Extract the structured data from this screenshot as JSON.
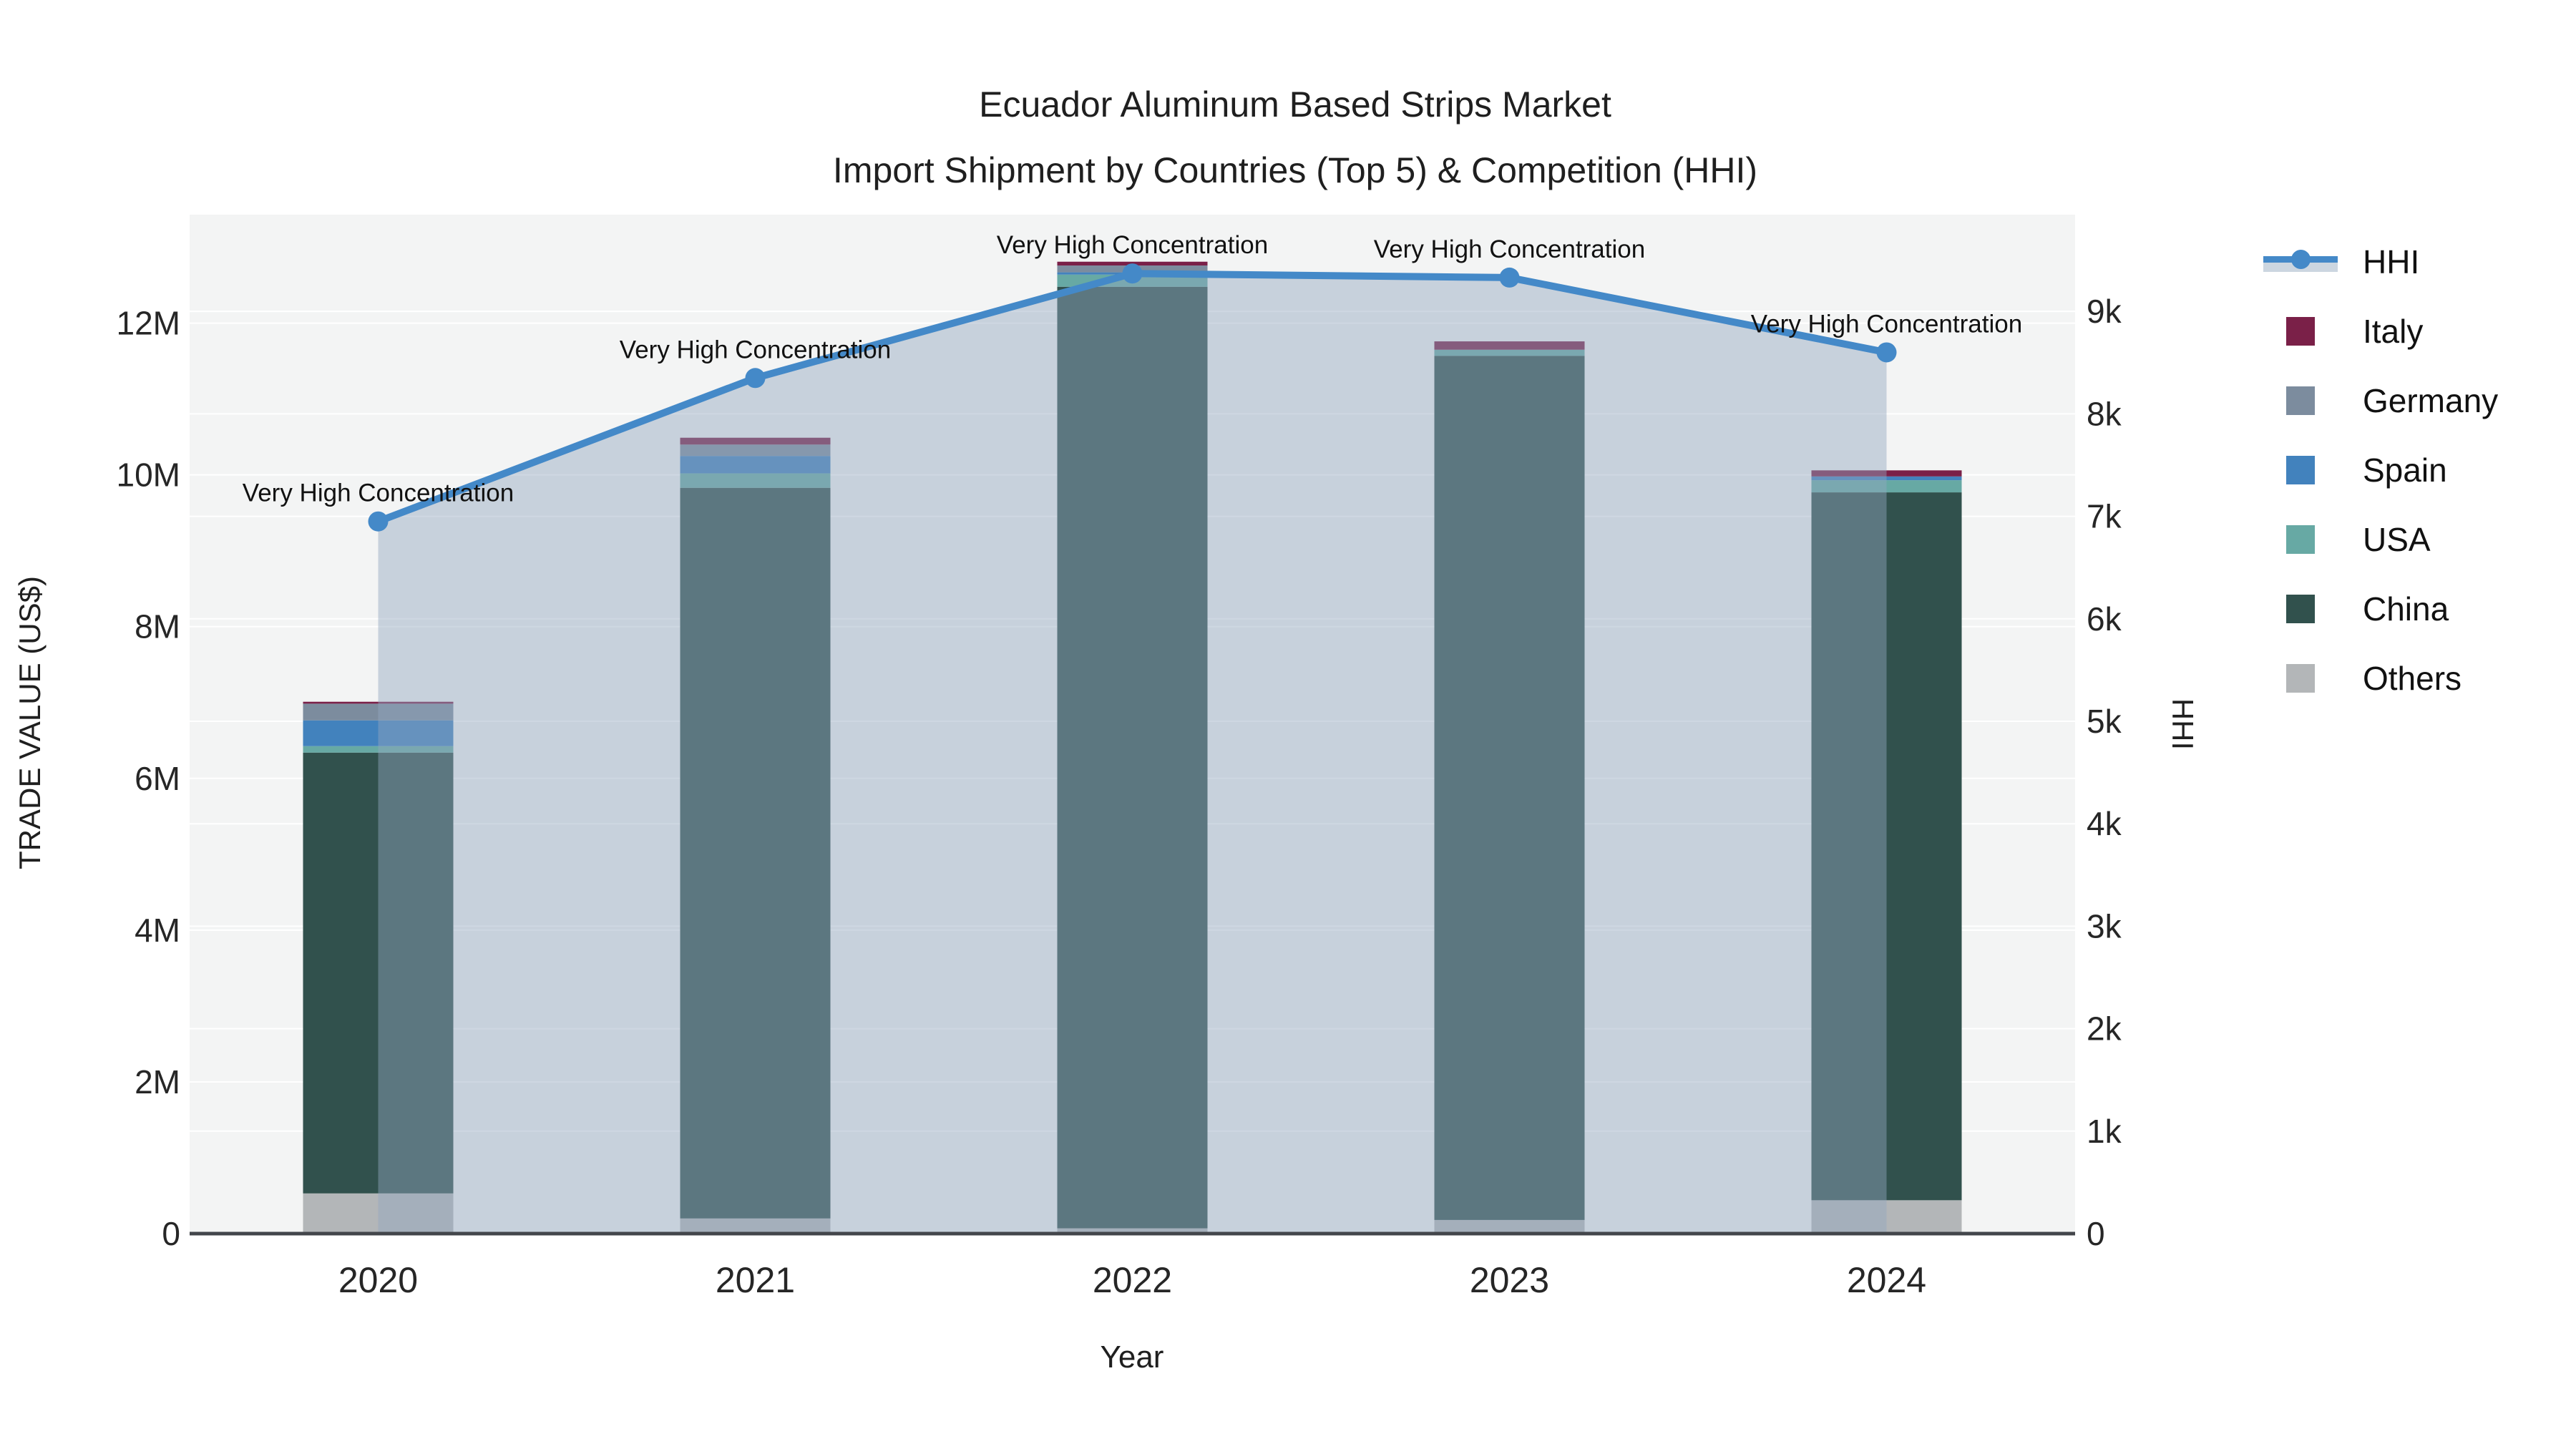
{
  "title": {
    "line1": "Ecuador Aluminum Based Strips Market",
    "line2": "Import Shipment by Countries (Top 5) & Competition (HHI)"
  },
  "x_axis": {
    "title": "Year"
  },
  "y_left_axis": {
    "title": "TRADE VALUE (US$)"
  },
  "y_right_axis": {
    "title": "HHI"
  },
  "legend": {
    "items": [
      {
        "label": "HHI",
        "kind": "line",
        "color": "#4489c8",
        "band_color": "#ccd6e0"
      },
      {
        "label": "Italy",
        "kind": "square",
        "color": "#7a2048"
      },
      {
        "label": "Germany",
        "kind": "square",
        "color": "#7c8c9e"
      },
      {
        "label": "Spain",
        "kind": "square",
        "color": "#4282bd"
      },
      {
        "label": "USA",
        "kind": "square",
        "color": "#67a9a4"
      },
      {
        "label": "China",
        "kind": "square",
        "color": "#31514d"
      },
      {
        "label": "Others",
        "kind": "square",
        "color": "#b3b6b8"
      }
    ]
  },
  "chart_data": {
    "type": "combo_stacked_bar_line",
    "categories": [
      "2020",
      "2021",
      "2022",
      "2023",
      "2024"
    ],
    "bar_value_unit": "US$",
    "bar_stack_order_bottom_to_top": [
      "Others",
      "China",
      "USA",
      "Spain",
      "Germany",
      "Italy"
    ],
    "series": [
      {
        "name": "Others",
        "color": "#b3b6b8",
        "values_usd": [
          530000,
          200000,
          70000,
          180000,
          440000
        ]
      },
      {
        "name": "China",
        "color": "#31514d",
        "values_usd": [
          5810000,
          9630000,
          12410000,
          11390000,
          9330000
        ]
      },
      {
        "name": "USA",
        "color": "#67a9a4",
        "values_usd": [
          85000,
          190000,
          160000,
          80000,
          160000
        ]
      },
      {
        "name": "Spain",
        "color": "#4282bd",
        "values_usd": [
          340000,
          230000,
          30000,
          0,
          50000
        ]
      },
      {
        "name": "Germany",
        "color": "#7c8c9e",
        "values_usd": [
          220000,
          150000,
          90000,
          0,
          0
        ]
      },
      {
        "name": "Italy",
        "color": "#7a2048",
        "values_usd": [
          25000,
          90000,
          50000,
          110000,
          80000
        ]
      }
    ],
    "bar_totals_usd": [
      7010000,
      10490000,
      12810000,
      11760000,
      10060000
    ],
    "line": {
      "name": "HHI",
      "color": "#4489c8",
      "area_fill": "rgba(147,167,190,0.45)",
      "values": [
        6950,
        8350,
        9370,
        9330,
        8600
      ]
    },
    "annotations": [
      {
        "category": "2020",
        "text": "Very High Concentration"
      },
      {
        "category": "2021",
        "text": "Very High Concentration"
      },
      {
        "category": "2022",
        "text": "Very High Concentration"
      },
      {
        "category": "2023",
        "text": "Very High Concentration"
      },
      {
        "category": "2024",
        "text": "Very High Concentration"
      }
    ],
    "y_left": {
      "label": "TRADE VALUE (US$)",
      "range_usd": [
        0,
        13430000
      ],
      "tick_values_usd": [
        0,
        2000000,
        4000000,
        6000000,
        8000000,
        10000000,
        12000000
      ],
      "tick_labels": [
        "0",
        "2M",
        "4M",
        "6M",
        "8M",
        "10M",
        "12M"
      ]
    },
    "y_right": {
      "label": "HHI",
      "range": [
        0,
        9944
      ],
      "tick_values": [
        0,
        1000,
        2000,
        3000,
        4000,
        5000,
        6000,
        7000,
        8000,
        9000
      ],
      "tick_labels": [
        "0",
        "1k",
        "2k",
        "3k",
        "4k",
        "5k",
        "6k",
        "7k",
        "8k",
        "9k"
      ]
    },
    "x_label": "Year",
    "grid": true,
    "legend_position": "right",
    "plot_background": "#f3f4f4",
    "grid_color": "#ffffff",
    "axis_line_color": "#43464b"
  }
}
